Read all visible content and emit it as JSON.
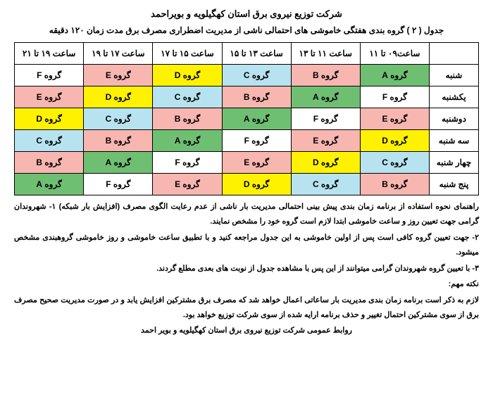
{
  "title": "شرکت توزیع نیروی برق استان کهگیلویه و بویراحمد",
  "subtitle": "جدول ( ۲ ) گروه بندی هفتگی خاموشی های احتمالی ناشی از مدیریت اضطراری مصرف برق مدت زمان ۱۲۰ دقیقه",
  "headers": {
    "day": "",
    "h1": "ساعت۰۹ تا ۱۱",
    "h2": "ساعت ۱۱ تا ۱۳",
    "h3": "ساعت ۱۳ تا ۱۵",
    "h4": "ساعت ۱۵ تا ۱۷",
    "h5": "ساعت ۱۷ تا ۱۹",
    "h6": "ساعت ۱۹ تا ۲۱"
  },
  "days": [
    "شنبه",
    "یکشنبه",
    "دوشنبه",
    "سه شنبه",
    "چهار شنبه",
    "پنج شنبه"
  ],
  "cells": [
    [
      {
        "t": "گروه A",
        "c": "#6fbf73"
      },
      {
        "t": "گروه B",
        "c": "#f8b6b0"
      },
      {
        "t": "گروه C",
        "c": "#b7e3f0"
      },
      {
        "t": "گروه D",
        "c": "#fff200"
      },
      {
        "t": "گروه E",
        "c": "#f8b6b0"
      },
      {
        "t": "گروه F",
        "c": "#ffffff"
      }
    ],
    [
      {
        "t": "گروه F",
        "c": "#ffffff"
      },
      {
        "t": "گروه A",
        "c": "#6fbf73"
      },
      {
        "t": "گروه B",
        "c": "#f8b6b0"
      },
      {
        "t": "گروه C",
        "c": "#b7e3f0"
      },
      {
        "t": "گروه D",
        "c": "#fff200"
      },
      {
        "t": "گروه E",
        "c": "#f8b6b0"
      }
    ],
    [
      {
        "t": "گروه E",
        "c": "#f8b6b0"
      },
      {
        "t": "گروه F",
        "c": "#ffffff"
      },
      {
        "t": "گروه A",
        "c": "#6fbf73"
      },
      {
        "t": "گروه B",
        "c": "#f8b6b0"
      },
      {
        "t": "گروه C",
        "c": "#b7e3f0"
      },
      {
        "t": "گروه D",
        "c": "#fff200"
      }
    ],
    [
      {
        "t": "گروه D",
        "c": "#fff200"
      },
      {
        "t": "گروه E",
        "c": "#f8b6b0"
      },
      {
        "t": "گروه F",
        "c": "#ffffff"
      },
      {
        "t": "گروه A",
        "c": "#6fbf73"
      },
      {
        "t": "گروه B",
        "c": "#f8b6b0"
      },
      {
        "t": "گروه C",
        "c": "#b7e3f0"
      }
    ],
    [
      {
        "t": "گروه C",
        "c": "#b7e3f0"
      },
      {
        "t": "گروه D",
        "c": "#fff200"
      },
      {
        "t": "گروه E",
        "c": "#f8b6b0"
      },
      {
        "t": "گروه F",
        "c": "#ffffff"
      },
      {
        "t": "گروه A",
        "c": "#6fbf73"
      },
      {
        "t": "گروه B",
        "c": "#f8b6b0"
      }
    ],
    [
      {
        "t": "گروه B",
        "c": "#f8b6b0"
      },
      {
        "t": "گروه C",
        "c": "#b7e3f0"
      },
      {
        "t": "گروه D",
        "c": "#fff200"
      },
      {
        "t": "گروه E",
        "c": "#f8b6b0"
      },
      {
        "t": "گروه F",
        "c": "#ffffff"
      },
      {
        "t": "گروه A",
        "c": "#6fbf73"
      }
    ]
  ],
  "notes": {
    "p1": "راهنمای نحوه استفاده از برنامه زمان بندی پیش بینی احتمالی مدیریت بار ناشی از عدم رعایت الگوی مصرف (افزایش بار شبکه)   ۱- شهروندان گرامی جهت تعیین روز و ساعت خاموشی ابتدا لازم است گروه خود را مشخص نمایند.",
    "p2": "۲- جهت تعیین گروه کافی است پس از اولین خاموشی به این جدول مراجعه کنید و با تطبیق ساعت خاموشی و روز خاموشی گروهبندی مشخص میشود.",
    "p3": "۳- با تعیین گروه شهروندان گرامی میتوانند از این پس با مشاهده جدول از نوبت های بعدی مطلع گردند.",
    "p4": "نکته مهم:",
    "p5": "لازم به ذکر است برنامه زمان بندی مدیریت بار ساعاتی اعمال خواهد شد که مصرف برق مشترکین افزایش یابد و در صورت مدیریت صحیح مصرف برق از سوی مشترکین احتمال تغییر و حذف برنامه ارایه شده از سوی شرکت توزیع خواهد بود."
  },
  "footer": "روابط عمومی شرکت توزیع نیروی برق استان کهگیلویه و بویر احمد"
}
